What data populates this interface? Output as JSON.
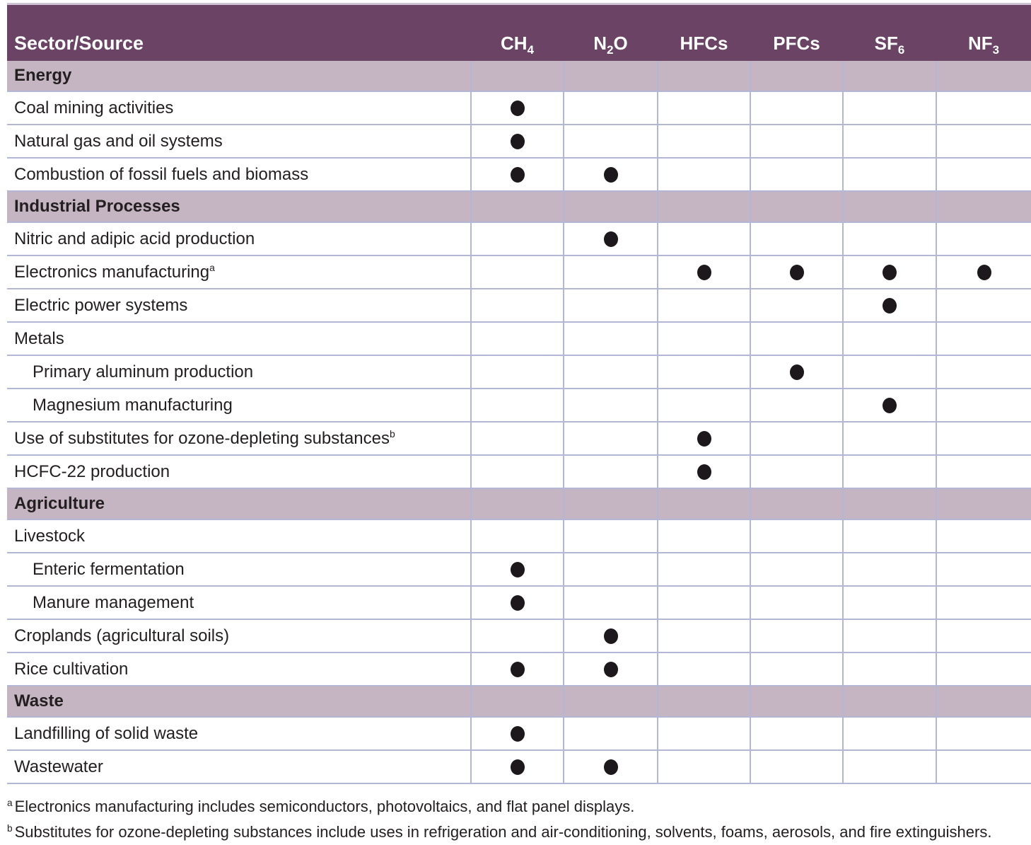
{
  "table": {
    "header": {
      "col0": "Sector/Source",
      "gases": [
        {
          "key": "CH4",
          "base": "CH",
          "sub": "4"
        },
        {
          "key": "N2O",
          "base": "N",
          "sub": "2",
          "tail": "O"
        },
        {
          "key": "HFCs",
          "base": "HFCs"
        },
        {
          "key": "PFCs",
          "base": "PFCs"
        },
        {
          "key": "SF6",
          "base": "SF",
          "sub": "6"
        },
        {
          "key": "NF3",
          "base": "NF",
          "sub": "3"
        }
      ]
    },
    "rows": [
      {
        "type": "section",
        "label": "Energy"
      },
      {
        "type": "data",
        "label": "Coal mining activities",
        "dots": [
          1,
          0,
          0,
          0,
          0,
          0
        ]
      },
      {
        "type": "data",
        "label": "Natural gas and oil systems",
        "dots": [
          1,
          0,
          0,
          0,
          0,
          0
        ]
      },
      {
        "type": "data",
        "label": "Combustion of fossil fuels and biomass",
        "dots": [
          1,
          1,
          0,
          0,
          0,
          0
        ]
      },
      {
        "type": "section",
        "label": "Industrial Processes"
      },
      {
        "type": "data",
        "label": "Nitric and adipic acid production",
        "dots": [
          0,
          1,
          0,
          0,
          0,
          0
        ]
      },
      {
        "type": "data",
        "label": "Electronics manufacturing",
        "sup": "a",
        "dots": [
          0,
          0,
          1,
          1,
          1,
          1
        ]
      },
      {
        "type": "data",
        "label": "Electric power systems",
        "dots": [
          0,
          0,
          0,
          0,
          1,
          0
        ]
      },
      {
        "type": "data",
        "label": "Metals",
        "dots": [
          0,
          0,
          0,
          0,
          0,
          0
        ]
      },
      {
        "type": "data",
        "label": "Primary aluminum production",
        "indent": true,
        "dots": [
          0,
          0,
          0,
          1,
          0,
          0
        ]
      },
      {
        "type": "data",
        "label": "Magnesium manufacturing",
        "indent": true,
        "dots": [
          0,
          0,
          0,
          0,
          1,
          0
        ]
      },
      {
        "type": "data",
        "label": "Use of substitutes for ozone-depleting substances",
        "sup": "b",
        "dots": [
          0,
          0,
          1,
          0,
          0,
          0
        ]
      },
      {
        "type": "data",
        "label": "HCFC-22 production",
        "dots": [
          0,
          0,
          1,
          0,
          0,
          0
        ]
      },
      {
        "type": "section",
        "label": "Agriculture"
      },
      {
        "type": "data",
        "label": "Livestock",
        "dots": [
          0,
          0,
          0,
          0,
          0,
          0
        ]
      },
      {
        "type": "data",
        "label": "Enteric fermentation",
        "indent": true,
        "dots": [
          1,
          0,
          0,
          0,
          0,
          0
        ]
      },
      {
        "type": "data",
        "label": "Manure management",
        "indent": true,
        "dots": [
          1,
          0,
          0,
          0,
          0,
          0
        ]
      },
      {
        "type": "data",
        "label": "Croplands (agricultural soils)",
        "dots": [
          0,
          1,
          0,
          0,
          0,
          0
        ]
      },
      {
        "type": "data",
        "label": "Rice cultivation",
        "dots": [
          1,
          1,
          0,
          0,
          0,
          0
        ]
      },
      {
        "type": "section",
        "label": "Waste"
      },
      {
        "type": "data",
        "label": "Landfilling of solid waste",
        "dots": [
          1,
          0,
          0,
          0,
          0,
          0
        ]
      },
      {
        "type": "data",
        "label": "Wastewater",
        "dots": [
          1,
          1,
          0,
          0,
          0,
          0
        ]
      }
    ],
    "footnotes": [
      {
        "marker": "a",
        "text": "Electronics manufacturing includes semiconductors, photovoltaics, and flat panel displays."
      },
      {
        "marker": "b",
        "text": "Substitutes for ozone-depleting substances include uses in refrigeration and air-conditioning, solvents, foams, aerosols, and fire extinguishers."
      }
    ],
    "colors": {
      "header_bg": "#6b4365",
      "header_text": "#ffffff",
      "section_bg": "#c5b4c1",
      "grid_line": "#b3b7d5",
      "dot": "#1c181b",
      "text": "#231f20"
    }
  }
}
